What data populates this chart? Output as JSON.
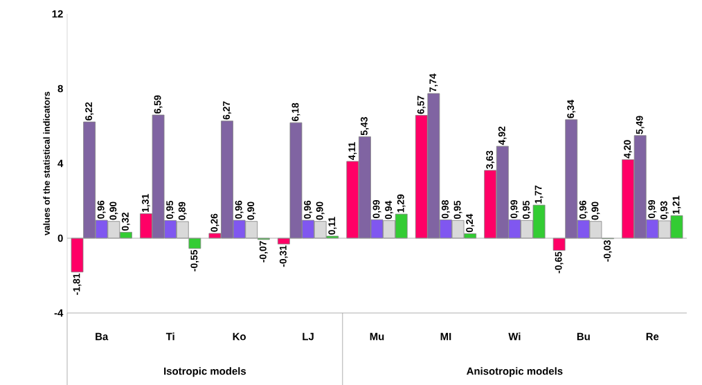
{
  "chart_data": {
    "type": "bar",
    "ylabel": "values of the statistical indicators",
    "categories": [
      "Ba",
      "Ti",
      "Ko",
      "LJ",
      "Mu",
      "MI",
      "Wi",
      "Bu",
      "Re"
    ],
    "series": [
      {
        "color": "#ff0066",
        "values": [
          -1.81,
          1.31,
          0.26,
          -0.31,
          4.11,
          6.57,
          3.63,
          -0.65,
          4.2
        ],
        "value_labels": [
          "-1,81",
          "1,31",
          "0,26",
          "-0,31",
          "4,11",
          "6,57",
          "3,63",
          "-0,65",
          "4,20"
        ]
      },
      {
        "color": "#8064a2",
        "values": [
          6.22,
          6.59,
          6.27,
          6.18,
          5.43,
          7.74,
          4.92,
          6.34,
          5.49
        ],
        "value_labels": [
          "6,22",
          "6,59",
          "6,27",
          "6,18",
          "5,43",
          "7,74",
          "4,92",
          "6,34",
          "5,49"
        ]
      },
      {
        "color": "#8057f0",
        "values": [
          0.96,
          0.95,
          0.96,
          0.96,
          0.99,
          0.98,
          0.99,
          0.96,
          0.99
        ],
        "value_labels": [
          "0,96",
          "0,95",
          "0,96",
          "0,96",
          "0,99",
          "0,98",
          "0,99",
          "0,96",
          "0,99"
        ]
      },
      {
        "color": "#d9d9d9",
        "values": [
          0.9,
          0.89,
          0.9,
          0.9,
          0.94,
          0.95,
          0.95,
          0.9,
          0.93
        ],
        "value_labels": [
          "0,90",
          "0,89",
          "0,90",
          "0,90",
          "0,94",
          "0,95",
          "0,95",
          "0,90",
          "0,93"
        ]
      },
      {
        "color": "#33cc33",
        "values": [
          0.32,
          -0.55,
          -0.07,
          0.11,
          1.29,
          0.24,
          1.77,
          -0.03,
          1.21
        ],
        "value_labels": [
          "0,32",
          "-0,55",
          "-0,07",
          "0,11",
          "1,29",
          "0,24",
          "1,77",
          "-0,03",
          "1,21"
        ]
      }
    ],
    "ylim": [
      -4,
      12
    ],
    "yticks": [
      -4,
      0,
      4,
      8,
      12
    ],
    "annotations": [
      "Isotropic models",
      "Anisotropic models"
    ]
  }
}
